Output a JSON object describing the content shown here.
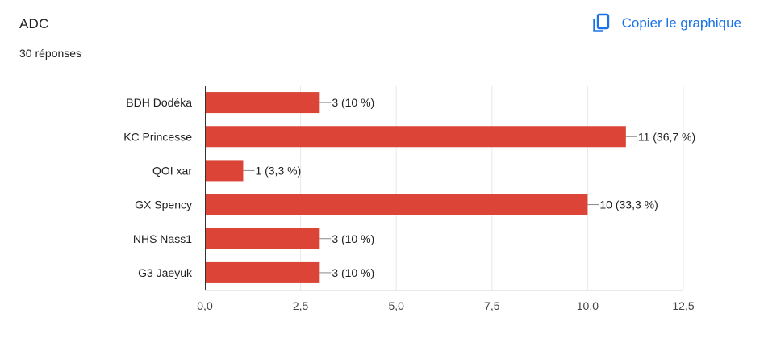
{
  "header": {
    "title": "ADC",
    "responses": "30 réponses",
    "copy_label": "Copier le graphique",
    "copy_icon": "copy-icon"
  },
  "colors": {
    "bar": "#db4437",
    "link": "#1a73e8",
    "grid": "#e8e8e8",
    "axis": "#333333",
    "text": "#202124"
  },
  "chart_data": {
    "type": "bar",
    "orientation": "horizontal",
    "categories": [
      "BDH Dodéka",
      "KC Princesse",
      "QOI xar",
      "GX Spency",
      "NHS Nass1",
      "G3 Jaeyuk"
    ],
    "values": [
      3,
      11,
      1,
      10,
      3,
      3
    ],
    "data_labels": [
      "3 (10 %)",
      "11 (36,7 %)",
      "1 (3,3 %)",
      "10 (33,3 %)",
      "3 (10 %)",
      "3 (10 %)"
    ],
    "xlim": [
      0,
      12.5
    ],
    "xticks": [
      0,
      2.5,
      5,
      7.5,
      10,
      12.5
    ],
    "xtick_labels": [
      "0,0",
      "2,5",
      "5,0",
      "7,5",
      "10,0",
      "12,5"
    ],
    "grid": true,
    "legend": "none"
  }
}
